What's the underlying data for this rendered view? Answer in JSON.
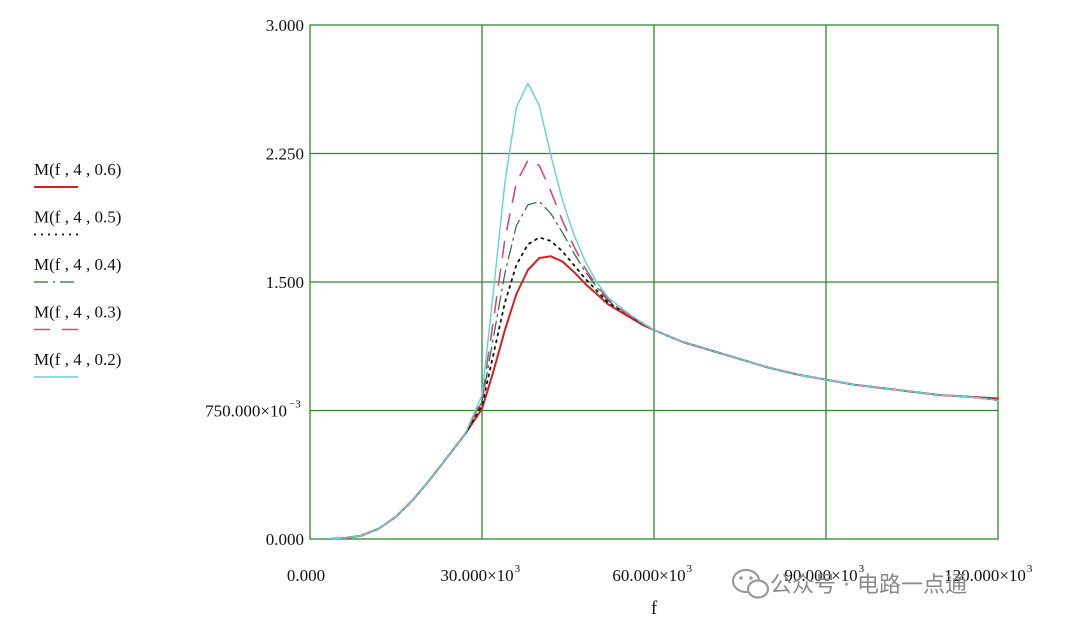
{
  "chart_data": {
    "type": "line",
    "xlabel": "f",
    "ylabel": "",
    "xlim": [
      0,
      120000
    ],
    "ylim": [
      0,
      3.0
    ],
    "grid": true,
    "legend_position": "left",
    "x_tick_labels": [
      {
        "value": 0,
        "text": "0.000",
        "sup": ""
      },
      {
        "value": 30000,
        "text": "30.000×10",
        "sup": "3"
      },
      {
        "value": 60000,
        "text": "60.000×10",
        "sup": "3"
      },
      {
        "value": 90000,
        "text": "90.000×10",
        "sup": "3"
      },
      {
        "value": 120000,
        "text": "120.000×10",
        "sup": "3"
      }
    ],
    "y_tick_labels": [
      {
        "value": 0,
        "text": "0.000",
        "sup": ""
      },
      {
        "value": 0.75,
        "text": "750.000×10",
        "sup": "−3"
      },
      {
        "value": 1.5,
        "text": "1.500",
        "sup": ""
      },
      {
        "value": 2.25,
        "text": "2.250",
        "sup": ""
      },
      {
        "value": 3.0,
        "text": "3.000",
        "sup": ""
      }
    ],
    "x": [
      3000,
      6000,
      9000,
      12000,
      15000,
      18000,
      21000,
      24000,
      27000,
      30000,
      32000,
      34000,
      36000,
      38000,
      40000,
      42000,
      44000,
      46000,
      48000,
      50000,
      52000,
      55000,
      58000,
      60000,
      65000,
      70000,
      75000,
      80000,
      85000,
      90000,
      95000,
      100000,
      105000,
      110000,
      115000,
      120000
    ],
    "series": [
      {
        "name": "M(f , 4 , 0.6)",
        "color": "#d42020",
        "dash": "",
        "width": 2.0,
        "values": [
          0.0,
          0.005,
          0.02,
          0.06,
          0.13,
          0.23,
          0.35,
          0.48,
          0.61,
          0.76,
          0.98,
          1.22,
          1.43,
          1.57,
          1.64,
          1.65,
          1.62,
          1.56,
          1.49,
          1.43,
          1.37,
          1.31,
          1.25,
          1.22,
          1.15,
          1.1,
          1.05,
          1.0,
          0.96,
          0.93,
          0.9,
          0.88,
          0.86,
          0.84,
          0.83,
          0.82
        ]
      },
      {
        "name": "M(f , 4 , 0.5)",
        "color": "#111111",
        "dash": "2,5",
        "width": 1.8,
        "values": [
          0.0,
          0.005,
          0.02,
          0.06,
          0.13,
          0.23,
          0.35,
          0.48,
          0.61,
          0.78,
          1.08,
          1.38,
          1.6,
          1.72,
          1.76,
          1.74,
          1.68,
          1.6,
          1.52,
          1.45,
          1.38,
          1.32,
          1.26,
          1.22,
          1.15,
          1.1,
          1.05,
          1.0,
          0.96,
          0.93,
          0.9,
          0.88,
          0.86,
          0.84,
          0.83,
          0.81
        ]
      },
      {
        "name": "M(f , 4 , 0.4)",
        "color": "#2a6b3a",
        "dash": "14,5,2,5",
        "width": 1.2,
        "values": [
          0.0,
          0.005,
          0.02,
          0.06,
          0.13,
          0.23,
          0.35,
          0.48,
          0.61,
          0.8,
          1.18,
          1.55,
          1.83,
          1.95,
          1.97,
          1.9,
          1.79,
          1.67,
          1.56,
          1.47,
          1.39,
          1.32,
          1.26,
          1.22,
          1.15,
          1.1,
          1.05,
          1.0,
          0.96,
          0.93,
          0.9,
          0.88,
          0.86,
          0.84,
          0.83,
          0.81
        ]
      },
      {
        "name": "M(f , 4 , 0.3)",
        "color": "#d14a7a",
        "dash": "16,12",
        "width": 1.6,
        "values": [
          0.0,
          0.005,
          0.02,
          0.06,
          0.13,
          0.23,
          0.35,
          0.48,
          0.61,
          0.82,
          1.28,
          1.75,
          2.08,
          2.21,
          2.18,
          2.03,
          1.86,
          1.71,
          1.58,
          1.48,
          1.4,
          1.32,
          1.26,
          1.22,
          1.15,
          1.1,
          1.05,
          1.0,
          0.96,
          0.93,
          0.9,
          0.88,
          0.86,
          0.84,
          0.83,
          0.81
        ]
      },
      {
        "name": "M(f , 4 , 0.2)",
        "color": "#5fd3d6",
        "dash": "",
        "width": 1.4,
        "values": [
          0.0,
          0.005,
          0.02,
          0.06,
          0.13,
          0.23,
          0.35,
          0.48,
          0.61,
          0.84,
          1.45,
          2.08,
          2.52,
          2.66,
          2.53,
          2.24,
          1.98,
          1.78,
          1.62,
          1.5,
          1.41,
          1.33,
          1.26,
          1.22,
          1.15,
          1.1,
          1.05,
          1.0,
          0.96,
          0.93,
          0.9,
          0.88,
          0.86,
          0.84,
          0.83,
          0.81
        ]
      }
    ]
  },
  "watermark": {
    "text": "公众号 · 电路一点通",
    "icon": "wechat-icon",
    "color": "#8a8a8a"
  }
}
